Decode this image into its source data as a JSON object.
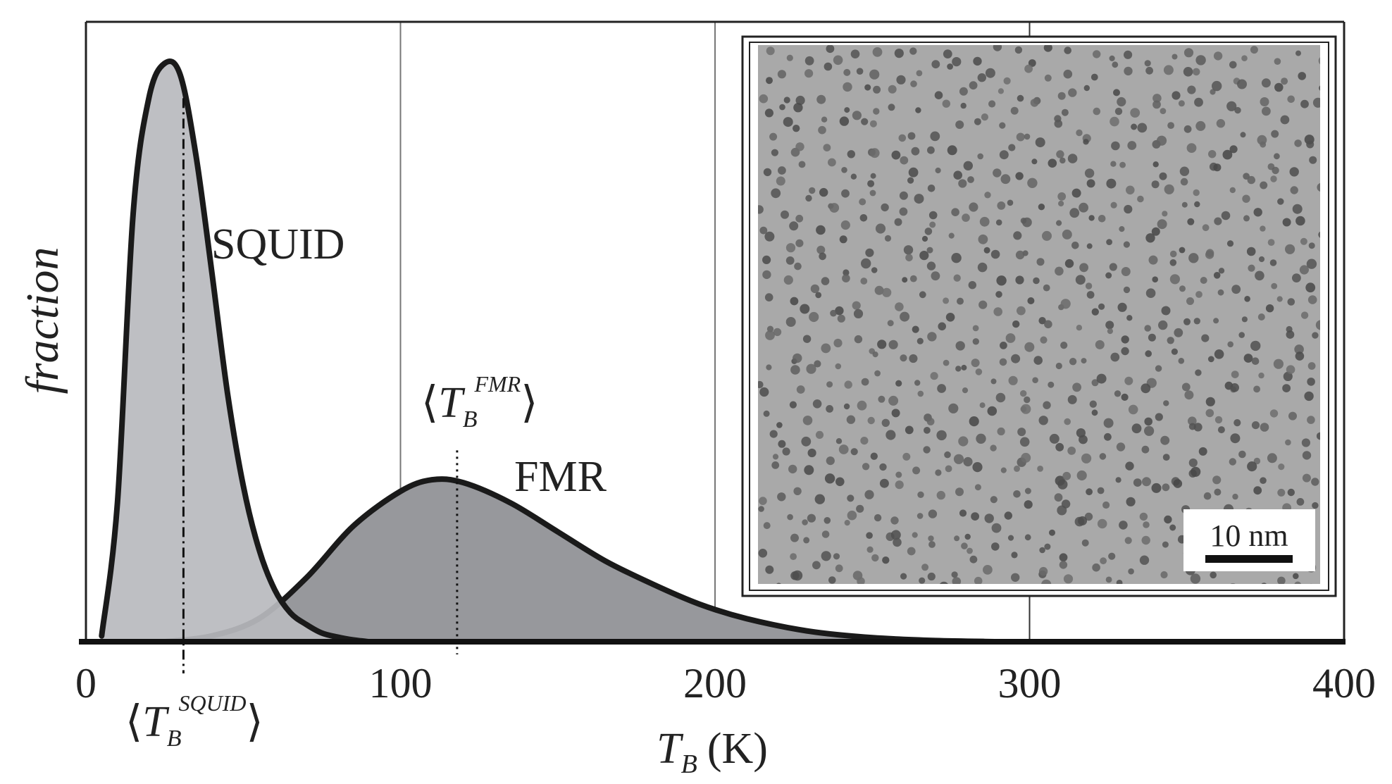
{
  "chart_data": {
    "type": "area",
    "title": "",
    "xlabel": {
      "symbol": "T",
      "subscript": "B",
      "unit": "(K)"
    },
    "ylabel": "fraction",
    "xlim": [
      0,
      400
    ],
    "ylim": [
      0,
      1
    ],
    "xticks": [
      "0",
      "100",
      "200",
      "300",
      "400"
    ],
    "vertical_gridlines": [
      100,
      200,
      300
    ],
    "grid": "vertical only",
    "legend": "none (series labeled inline)",
    "series": [
      {
        "name": "SQUID",
        "fill": "#b9babe",
        "x": [
          5,
          10,
          15,
          20,
          25,
          30,
          35,
          40,
          45,
          50,
          55,
          60,
          65,
          70,
          75,
          80,
          85,
          90
        ],
        "y": [
          0.01,
          0.24,
          0.74,
          0.94,
          1.0,
          0.98,
          0.84,
          0.64,
          0.43,
          0.27,
          0.16,
          0.09,
          0.05,
          0.03,
          0.015,
          0.008,
          0.003,
          0.0
        ]
      },
      {
        "name": "FMR",
        "fill": "#97989c",
        "x": [
          25,
          40,
          55,
          70,
          85,
          100,
          110,
          120,
          135,
          150,
          165,
          180,
          195,
          210,
          230,
          250,
          270,
          290
        ],
        "y": [
          0.0,
          0.01,
          0.04,
          0.11,
          0.2,
          0.26,
          0.28,
          0.275,
          0.24,
          0.19,
          0.14,
          0.1,
          0.065,
          0.04,
          0.018,
          0.007,
          0.002,
          0.0
        ]
      }
    ],
    "markers": [
      {
        "series": "SQUID",
        "x": 31,
        "style": "dash-dot",
        "label": {
          "main": "T",
          "sub": "B",
          "sup": "SQUID"
        }
      },
      {
        "series": "FMR",
        "x": 118,
        "style": "dotted",
        "label": {
          "main": "T",
          "sub": "B",
          "sup": "FMR"
        }
      }
    ],
    "inset": {
      "content": "TEM micrograph of nanoparticles",
      "scale_bar": "10 nm",
      "background": "#a9a9a9",
      "dot_color": "#5c5c5c"
    }
  }
}
